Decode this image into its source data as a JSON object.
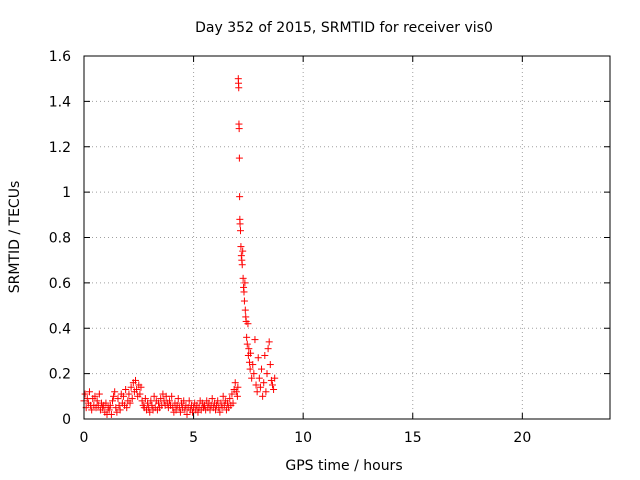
{
  "chart_data": {
    "type": "scatter",
    "title": "Day 352 of 2015, SRMTID for receiver vis0",
    "xlabel": "GPS time / hours",
    "ylabel": "SRMTID / TECUs",
    "xlim": [
      0,
      24
    ],
    "ylim": [
      0,
      1.6
    ],
    "x_ticks": [
      0,
      5,
      10,
      15,
      20
    ],
    "y_ticks": [
      0,
      0.2,
      0.4,
      0.6,
      0.8,
      1,
      1.2,
      1.4,
      1.6
    ],
    "x_tick_labels": [
      "0",
      "5",
      "10",
      "15",
      "20"
    ],
    "y_tick_labels": [
      "0",
      "0.2",
      "0.4",
      "0.6",
      "0.8",
      "1",
      "1.2",
      "1.4",
      "1.6"
    ],
    "grid": true,
    "marker": "+",
    "series": [
      {
        "name": "vis0",
        "color": "#ff0000",
        "points": [
          [
            0.0,
            0.08
          ],
          [
            0.05,
            0.11
          ],
          [
            0.1,
            0.05
          ],
          [
            0.15,
            0.09
          ],
          [
            0.2,
            0.07
          ],
          [
            0.25,
            0.12
          ],
          [
            0.3,
            0.06
          ],
          [
            0.35,
            0.04
          ],
          [
            0.4,
            0.09
          ],
          [
            0.45,
            0.06
          ],
          [
            0.5,
            0.1
          ],
          [
            0.55,
            0.05
          ],
          [
            0.6,
            0.08
          ],
          [
            0.65,
            0.06
          ],
          [
            0.7,
            0.11
          ],
          [
            0.75,
            0.04
          ],
          [
            0.8,
            0.07
          ],
          [
            0.85,
            0.05
          ],
          [
            0.9,
            0.06
          ],
          [
            0.95,
            0.03
          ],
          [
            1.0,
            0.07
          ],
          [
            1.05,
            0.02
          ],
          [
            1.1,
            0.05
          ],
          [
            1.15,
            0.04
          ],
          [
            1.2,
            0.06
          ],
          [
            1.25,
            0.02
          ],
          [
            1.3,
            0.08
          ],
          [
            1.35,
            0.1
          ],
          [
            1.4,
            0.12
          ],
          [
            1.45,
            0.05
          ],
          [
            1.5,
            0.03
          ],
          [
            1.55,
            0.09
          ],
          [
            1.6,
            0.06
          ],
          [
            1.65,
            0.04
          ],
          [
            1.7,
            0.11
          ],
          [
            1.75,
            0.07
          ],
          [
            1.8,
            0.1
          ],
          [
            1.85,
            0.06
          ],
          [
            1.9,
            0.13
          ],
          [
            1.95,
            0.05
          ],
          [
            2.0,
            0.08
          ],
          [
            2.05,
            0.11
          ],
          [
            2.1,
            0.07
          ],
          [
            2.15,
            0.14
          ],
          [
            2.2,
            0.09
          ],
          [
            2.25,
            0.16
          ],
          [
            2.3,
            0.12
          ],
          [
            2.35,
            0.17
          ],
          [
            2.4,
            0.13
          ],
          [
            2.45,
            0.1
          ],
          [
            2.5,
            0.15
          ],
          [
            2.55,
            0.11
          ],
          [
            2.6,
            0.14
          ],
          [
            2.65,
            0.08
          ],
          [
            2.7,
            0.06
          ],
          [
            2.75,
            0.05
          ],
          [
            2.8,
            0.09
          ],
          [
            2.85,
            0.04
          ],
          [
            2.9,
            0.07
          ],
          [
            2.95,
            0.05
          ],
          [
            3.0,
            0.03
          ],
          [
            3.05,
            0.08
          ],
          [
            3.1,
            0.06
          ],
          [
            3.15,
            0.04
          ],
          [
            3.2,
            0.1
          ],
          [
            3.25,
            0.05
          ],
          [
            3.3,
            0.08
          ],
          [
            3.35,
            0.04
          ],
          [
            3.4,
            0.07
          ],
          [
            3.45,
            0.05
          ],
          [
            3.5,
            0.09
          ],
          [
            3.55,
            0.06
          ],
          [
            3.6,
            0.11
          ],
          [
            3.65,
            0.08
          ],
          [
            3.7,
            0.06
          ],
          [
            3.75,
            0.1
          ],
          [
            3.8,
            0.07
          ],
          [
            3.85,
            0.05
          ],
          [
            3.9,
            0.08
          ],
          [
            3.95,
            0.06
          ],
          [
            4.0,
            0.1
          ],
          [
            4.05,
            0.05
          ],
          [
            4.1,
            0.03
          ],
          [
            4.15,
            0.07
          ],
          [
            4.2,
            0.04
          ],
          [
            4.25,
            0.06
          ],
          [
            4.3,
            0.09
          ],
          [
            4.35,
            0.05
          ],
          [
            4.4,
            0.03
          ],
          [
            4.45,
            0.07
          ],
          [
            4.5,
            0.05
          ],
          [
            4.55,
            0.08
          ],
          [
            4.6,
            0.04
          ],
          [
            4.65,
            0.06
          ],
          [
            4.7,
            0.02
          ],
          [
            4.75,
            0.05
          ],
          [
            4.8,
            0.08
          ],
          [
            4.85,
            0.04
          ],
          [
            4.9,
            0.06
          ],
          [
            4.95,
            0.03
          ],
          [
            5.0,
            0.05
          ],
          [
            5.05,
            0.07
          ],
          [
            5.1,
            0.04
          ],
          [
            5.15,
            0.06
          ],
          [
            5.2,
            0.03
          ],
          [
            5.25,
            0.05
          ],
          [
            5.3,
            0.08
          ],
          [
            5.35,
            0.04
          ],
          [
            5.4,
            0.07
          ],
          [
            5.45,
            0.05
          ],
          [
            5.5,
            0.06
          ],
          [
            5.55,
            0.04
          ],
          [
            5.6,
            0.08
          ],
          [
            5.65,
            0.05
          ],
          [
            5.7,
            0.07
          ],
          [
            5.75,
            0.04
          ],
          [
            5.8,
            0.06
          ],
          [
            5.85,
            0.09
          ],
          [
            5.9,
            0.05
          ],
          [
            5.95,
            0.07
          ],
          [
            6.0,
            0.04
          ],
          [
            6.05,
            0.06
          ],
          [
            6.1,
            0.08
          ],
          [
            6.15,
            0.05
          ],
          [
            6.2,
            0.03
          ],
          [
            6.25,
            0.07
          ],
          [
            6.3,
            0.05
          ],
          [
            6.35,
            0.1
          ],
          [
            6.4,
            0.06
          ],
          [
            6.45,
            0.08
          ],
          [
            6.5,
            0.04
          ],
          [
            6.55,
            0.07
          ],
          [
            6.6,
            0.05
          ],
          [
            6.65,
            0.09
          ],
          [
            6.7,
            0.06
          ],
          [
            6.75,
            0.11
          ],
          [
            6.8,
            0.07
          ],
          [
            6.85,
            0.13
          ],
          [
            6.9,
            0.16
          ],
          [
            6.95,
            0.12
          ],
          [
            7.0,
            0.1
          ],
          [
            7.02,
            0.14
          ],
          [
            7.04,
            1.5
          ],
          [
            7.05,
            1.48
          ],
          [
            7.06,
            1.46
          ],
          [
            7.07,
            1.3
          ],
          [
            7.08,
            1.28
          ],
          [
            7.09,
            1.15
          ],
          [
            7.1,
            0.98
          ],
          [
            7.11,
            0.88
          ],
          [
            7.12,
            0.86
          ],
          [
            7.14,
            0.83
          ],
          [
            7.16,
            0.76
          ],
          [
            7.18,
            0.72
          ],
          [
            7.2,
            0.7
          ],
          [
            7.22,
            0.68
          ],
          [
            7.24,
            0.74
          ],
          [
            7.26,
            0.62
          ],
          [
            7.28,
            0.58
          ],
          [
            7.3,
            0.56
          ],
          [
            7.32,
            0.52
          ],
          [
            7.34,
            0.6
          ],
          [
            7.36,
            0.48
          ],
          [
            7.38,
            0.45
          ],
          [
            7.4,
            0.43
          ],
          [
            7.42,
            0.36
          ],
          [
            7.45,
            0.33
          ],
          [
            7.48,
            0.42
          ],
          [
            7.5,
            0.28
          ],
          [
            7.52,
            0.31
          ],
          [
            7.55,
            0.25
          ],
          [
            7.58,
            0.22
          ],
          [
            7.6,
            0.29
          ],
          [
            7.65,
            0.18
          ],
          [
            7.7,
            0.24
          ],
          [
            7.75,
            0.2
          ],
          [
            7.8,
            0.35
          ],
          [
            7.85,
            0.15
          ],
          [
            7.9,
            0.12
          ],
          [
            7.95,
            0.27
          ],
          [
            8.0,
            0.18
          ],
          [
            8.05,
            0.14
          ],
          [
            8.1,
            0.22
          ],
          [
            8.15,
            0.1
          ],
          [
            8.2,
            0.16
          ],
          [
            8.25,
            0.28
          ],
          [
            8.3,
            0.12
          ],
          [
            8.35,
            0.2
          ],
          [
            8.4,
            0.31
          ],
          [
            8.45,
            0.34
          ],
          [
            8.5,
            0.24
          ],
          [
            8.55,
            0.17
          ],
          [
            8.6,
            0.15
          ],
          [
            8.65,
            0.13
          ],
          [
            8.7,
            0.18
          ]
        ]
      }
    ]
  }
}
